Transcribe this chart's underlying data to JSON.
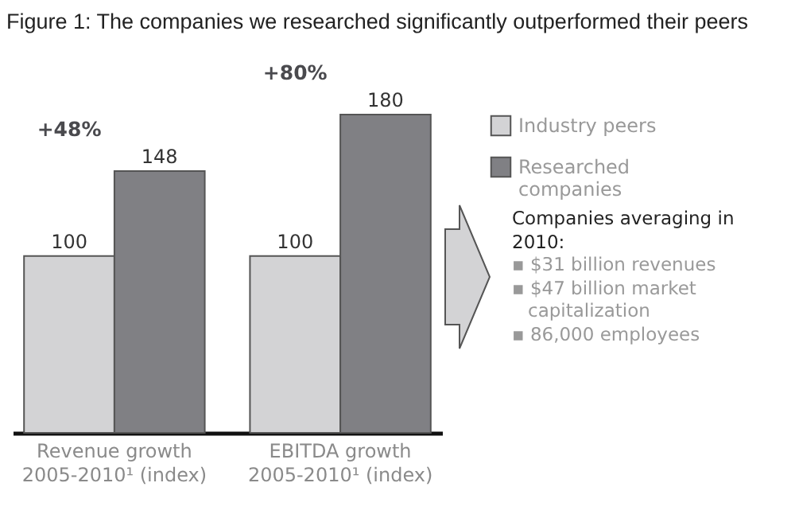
{
  "chart_data": {
    "type": "bar",
    "title": "Figure 1: The companies we researched significantly outperformed their peers",
    "categories": [
      "Revenue growth 2005-2010¹ (index)",
      "EBITDA growth 2005-2010¹ (index)"
    ],
    "series": [
      {
        "name": "Industry peers",
        "color": "#d3d3d5",
        "values": [
          100,
          100
        ]
      },
      {
        "name": "Researched companies",
        "color": "#808084",
        "values": [
          148,
          180
        ]
      }
    ],
    "data_labels": true,
    "legend": "top right",
    "grid": false,
    "annotations": [
      {
        "text": "+48%",
        "x": "Revenue growth 2005-2010¹ (index)",
        "y": 148
      },
      {
        "text": "+80%",
        "x": "EBITDA growth 2005-2010¹ (index)",
        "y": 180
      },
      "Companies averaging in 2010:",
      "▪ $31 billion revenues",
      "▪ $47 billion market capitalization",
      "▪ 86,000 employees"
    ]
  }
}
